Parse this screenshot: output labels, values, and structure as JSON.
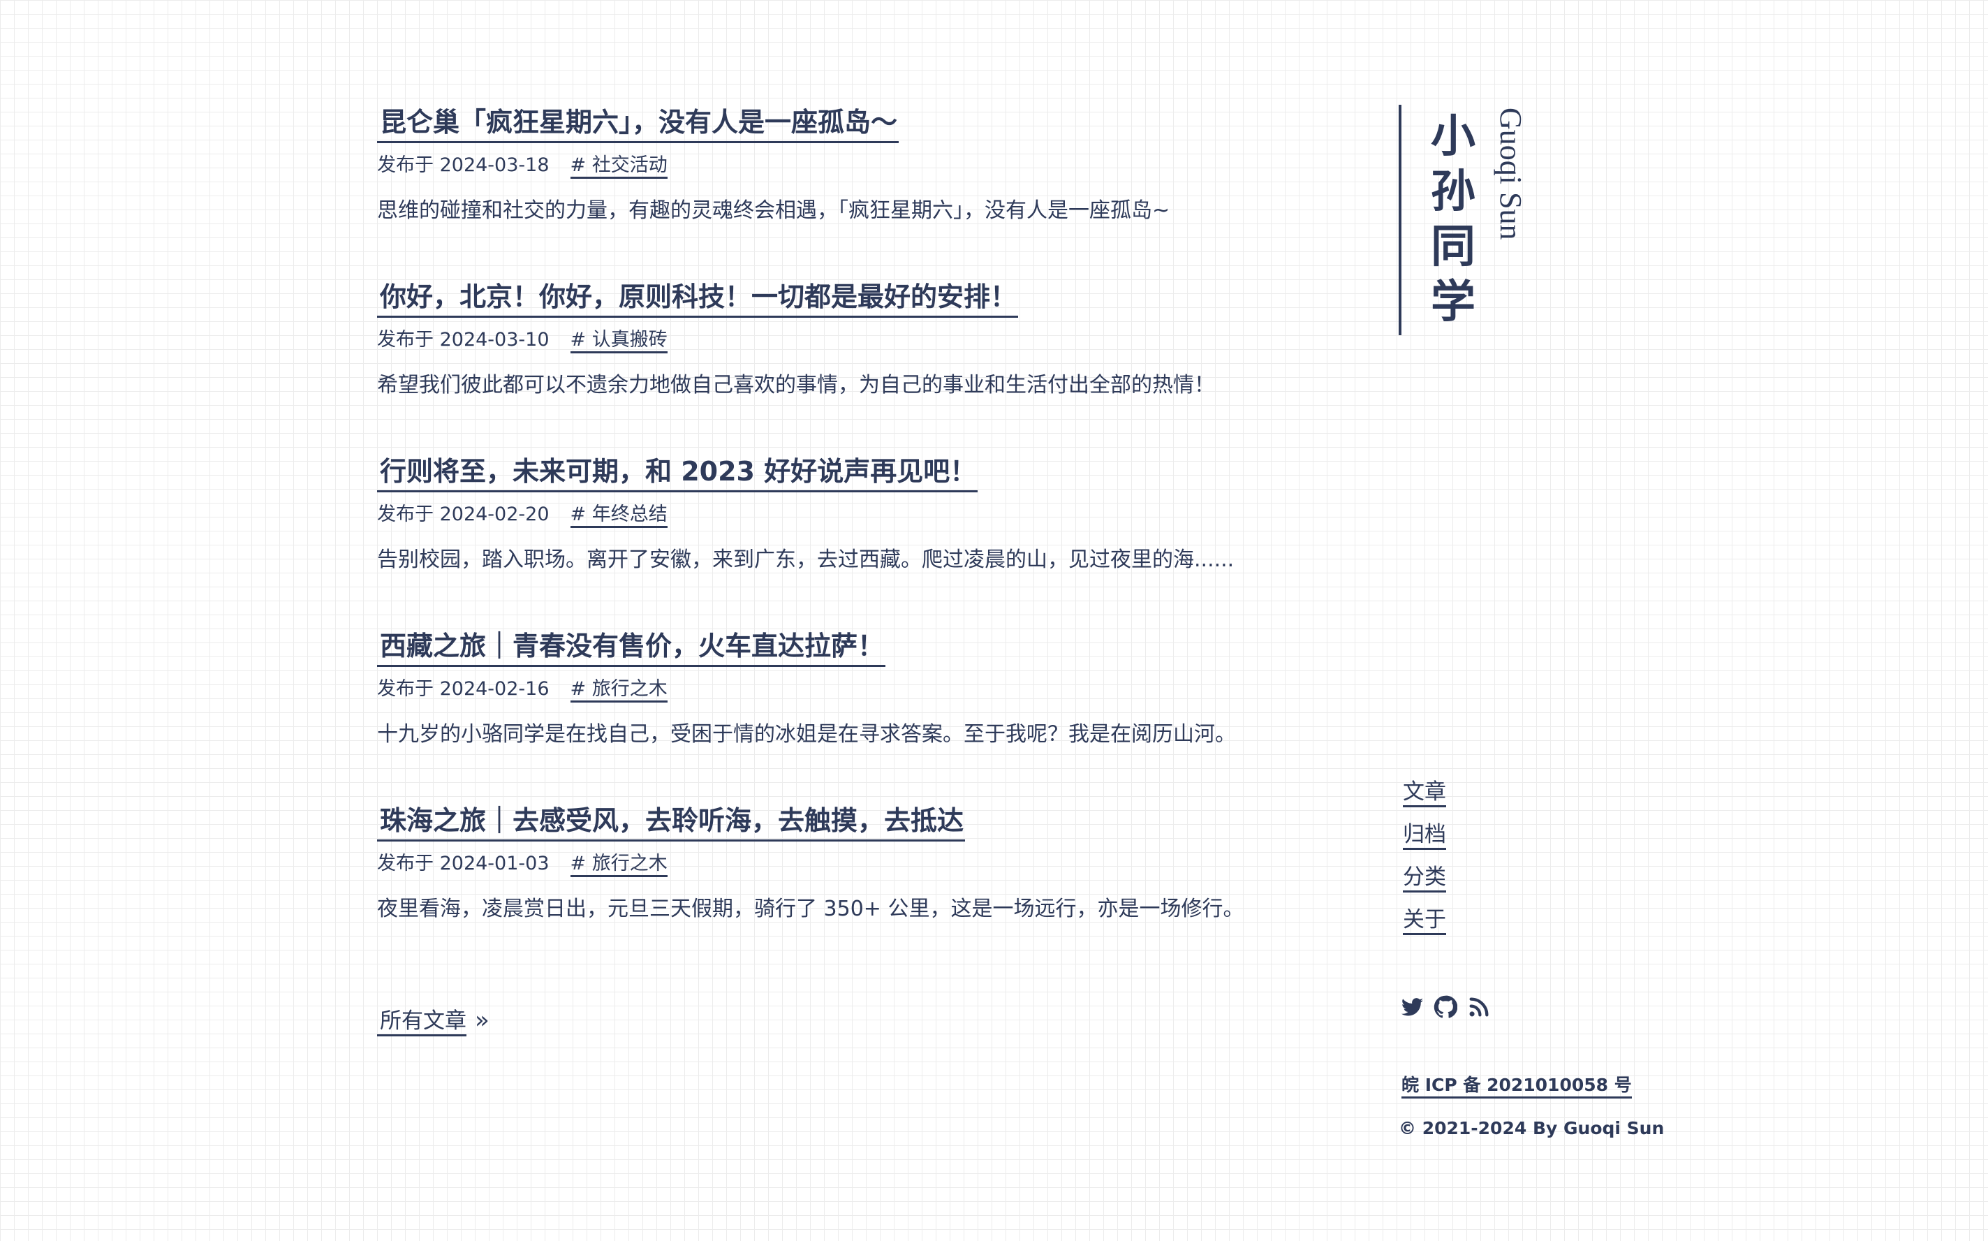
{
  "posts": [
    {
      "title": "昆仑巢「疯狂星期六」，没有人是一座孤岛～",
      "date": "发布于 2024-03-18",
      "tag": "# 社交活动",
      "excerpt": "思维的碰撞和社交的力量，有趣的灵魂终会相遇，「疯狂星期六」，没有人是一座孤岛~"
    },
    {
      "title": "你好，北京！你好，原则科技！一切都是最好的安排！",
      "date": "发布于 2024-03-10",
      "tag": "# 认真搬砖",
      "excerpt": "希望我们彼此都可以不遗余力地做自己喜欢的事情，为自己的事业和生活付出全部的热情！"
    },
    {
      "title": "行则将至，未来可期，和 2023 好好说声再见吧！",
      "date": "发布于 2024-02-20",
      "tag": "# 年终总结",
      "excerpt": "告别校园，踏入职场。离开了安徽，来到广东，去过西藏。爬过凌晨的山，见过夜里的海......"
    },
    {
      "title": "西藏之旅｜青春没有售价，火车直达拉萨！",
      "date": "发布于 2024-02-16",
      "tag": "# 旅行之木",
      "excerpt": "十九岁的小骆同学是在找自己，受困于情的冰姐是在寻求答案。至于我呢？我是在阅历山河。"
    },
    {
      "title": "珠海之旅｜去感受风，去聆听海，去触摸，去抵达",
      "date": "发布于 2024-01-03",
      "tag": "# 旅行之木",
      "excerpt": "夜里看海，凌晨赏日出，元旦三天假期，骑行了 350+ 公里，这是一场远行，亦是一场修行。"
    }
  ],
  "all_posts": {
    "label": "所有文章",
    "arrow": "»"
  },
  "sidebar": {
    "brand_cn": "小孙同学",
    "brand_en": "Guoqi Sun",
    "nav": [
      "文章",
      "归档",
      "分类",
      "关于"
    ],
    "social_icons": [
      "twitter-icon",
      "github-icon",
      "rss-icon"
    ],
    "icp": "皖 ICP 备 2021010058 号",
    "copyright": "© 2021-2024 By Guoqi Sun"
  },
  "colors": {
    "text": "#2e3a59",
    "grid": "#ececec",
    "background": "#ffffff"
  }
}
